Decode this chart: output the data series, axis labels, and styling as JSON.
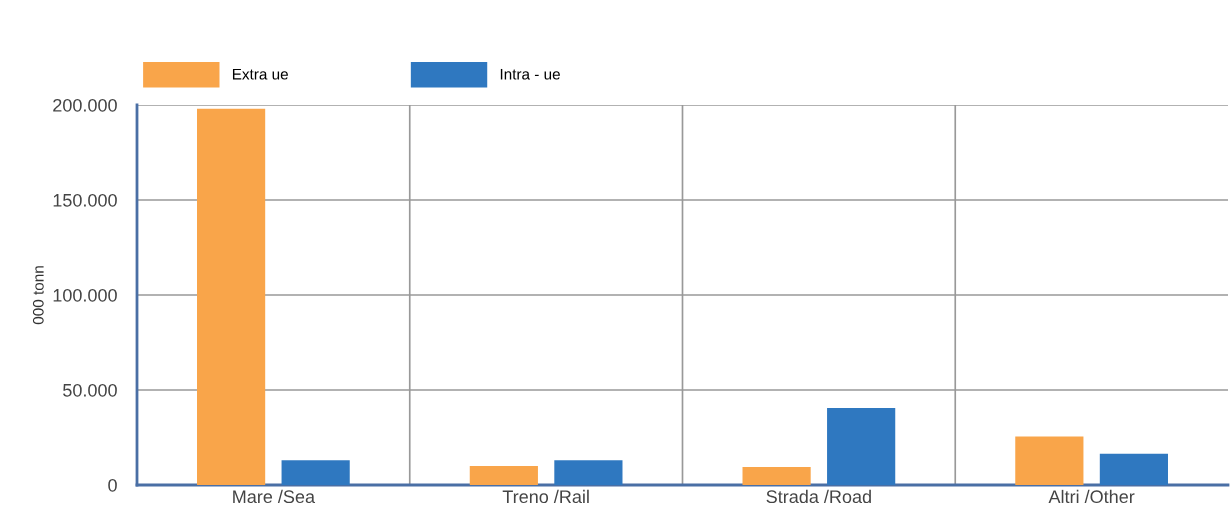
{
  "chart_data": {
    "type": "bar",
    "ylabel": "000 tonn",
    "categories": [
      "Mare /Sea",
      "Treno /Rail",
      "Strada /Road",
      "Altri /Other"
    ],
    "series": [
      {
        "name": "Extra ue",
        "color": "#f9a54a",
        "values": [
          198000,
          10000,
          9500,
          25500
        ]
      },
      {
        "name": "Intra - ue",
        "color": "#2f78c0",
        "values": [
          13000,
          13000,
          40500,
          16500
        ]
      }
    ],
    "ylim": [
      0,
      200000
    ],
    "yticks": [
      {
        "value": 0,
        "label": "0"
      },
      {
        "value": 50000,
        "label": "50.000"
      },
      {
        "value": 100000,
        "label": "100.000"
      },
      {
        "value": 150000,
        "label": "150.000"
      },
      {
        "value": 200000,
        "label": "200.000"
      }
    ],
    "grid": true,
    "legend": "top left"
  }
}
